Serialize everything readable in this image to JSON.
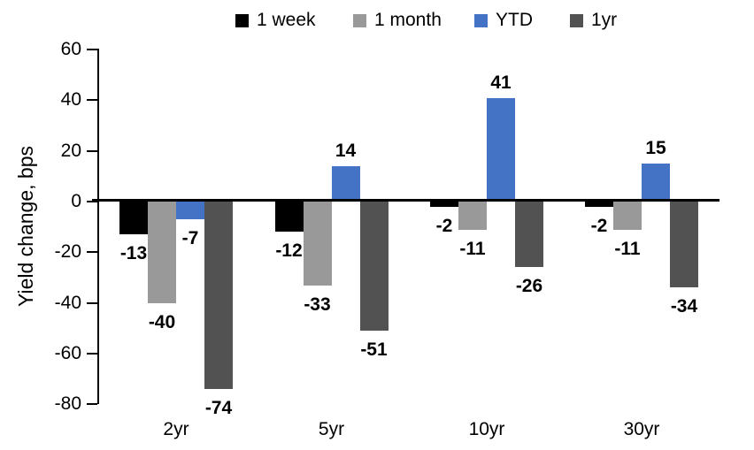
{
  "chart_data": {
    "type": "bar",
    "title": "",
    "ylabel": "Yield change, bps",
    "xlabel": "",
    "categories": [
      "2yr",
      "5yr",
      "10yr",
      "30yr"
    ],
    "series": [
      {
        "name": "1 week",
        "color": "#000000",
        "values": [
          -13,
          -12,
          -2,
          -2
        ]
      },
      {
        "name": "1 month",
        "color": "#999999",
        "values": [
          -40,
          -33,
          -11,
          -11
        ]
      },
      {
        "name": "YTD",
        "color": "#4472C4",
        "values": [
          -7,
          14,
          41,
          15
        ]
      },
      {
        "name": "1yr",
        "color": "#525252",
        "values": [
          -74,
          -51,
          -26,
          -34
        ]
      }
    ],
    "y_axis": {
      "min": -80,
      "max": 60,
      "step": 20,
      "tick_labels": [
        "60",
        "40",
        "20",
        "0",
        "-20",
        "-40",
        "-60",
        "-80"
      ]
    },
    "data_labels": "shown",
    "legend_position": "top",
    "grid": false,
    "background_color": "#ffffff",
    "text_color": "#000000"
  }
}
